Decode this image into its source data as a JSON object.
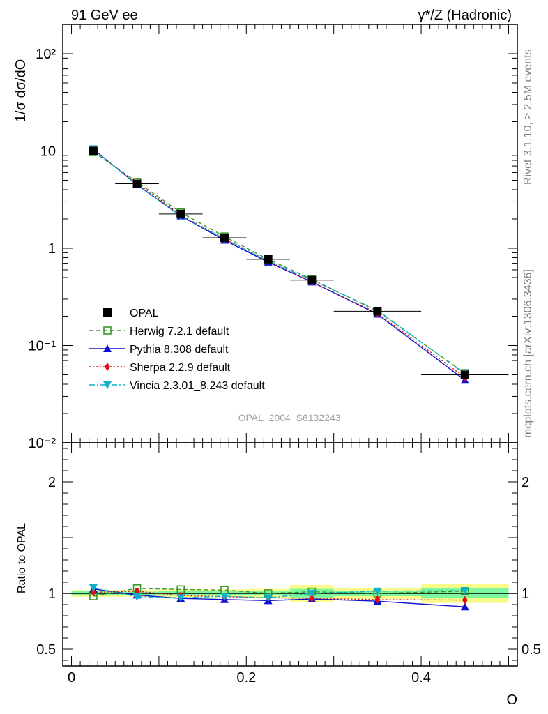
{
  "header": {
    "left": "91 GeV ee",
    "right": "γ*/Z (Hadronic)"
  },
  "side_text": {
    "rivet": "Rivet 3.1.10, ≥ 2.5M events",
    "mcplots": "mcplots.cern.ch [arXiv:1306.3436]"
  },
  "chart_data": [
    {
      "type": "line",
      "title": "",
      "ylabel": "1/σ dσ/dO",
      "ylim": [
        0.01,
        200
      ],
      "yscale": "log",
      "xlim": [
        -0.01,
        0.51
      ],
      "analysis_label": "OPAL_2004_S6132243",
      "legend_position": "middle-left",
      "y_tick_labels": [
        "10^-2",
        "10^-1",
        "1",
        "10",
        "10^2"
      ],
      "x": [
        0.025,
        0.075,
        0.125,
        0.175,
        0.225,
        0.275,
        0.35,
        0.45
      ],
      "x_bin_edges": [
        0.0,
        0.05,
        0.1,
        0.15,
        0.2,
        0.25,
        0.3,
        0.4,
        0.5
      ],
      "series": [
        {
          "name": "OPAL",
          "color": "#000000",
          "marker": "square-filled",
          "line": "none",
          "values": [
            10.0,
            4.6,
            2.25,
            1.28,
            0.77,
            0.47,
            0.225,
            0.05
          ]
        },
        {
          "name": "Herwig 7.2.1 default",
          "color": "#3a9a28",
          "marker": "square-open",
          "line": "dashed",
          "values": [
            9.75,
            4.8,
            2.33,
            1.32,
            0.77,
            0.48,
            0.225,
            0.052
          ]
        },
        {
          "name": "Pythia 8.308 default",
          "color": "#1010d0",
          "marker": "triangle-up",
          "line": "solid",
          "values": [
            10.4,
            4.5,
            2.15,
            1.21,
            0.72,
            0.45,
            0.21,
            0.044
          ]
        },
        {
          "name": "Sherpa 2.2.9 default",
          "color": "#e01010",
          "marker": "diamond",
          "line": "dotted",
          "values": [
            10.1,
            4.7,
            2.2,
            1.25,
            0.74,
            0.45,
            0.215,
            0.047
          ]
        },
        {
          "name": "Vincia 2.3.01_8.243 default",
          "color": "#10b0c8",
          "marker": "triangle-down",
          "line": "dashdot",
          "values": [
            10.5,
            4.45,
            2.15,
            1.25,
            0.74,
            0.47,
            0.23,
            0.051
          ]
        }
      ]
    },
    {
      "type": "line",
      "ylabel": "Ratio to OPAL",
      "xlabel": "O",
      "ylim": [
        0.35,
        2.35
      ],
      "xlim": [
        -0.01,
        0.51
      ],
      "y_ticks": [
        0.5,
        1,
        2
      ],
      "y_tick_labels": [
        "0.5",
        "1",
        "2"
      ],
      "x_ticks": [
        0,
        0.2,
        0.4
      ],
      "x_tick_labels": [
        "0",
        "0.2",
        "0.4"
      ],
      "x": [
        0.025,
        0.075,
        0.125,
        0.175,
        0.225,
        0.275,
        0.35,
        0.45
      ],
      "x_bin_edges": [
        0.0,
        0.05,
        0.1,
        0.15,
        0.2,
        0.25,
        0.3,
        0.4,
        0.5
      ],
      "uncertainty_bands": {
        "inner_color": "#7ef79e",
        "outer_color": "#fbfb8a",
        "inner": [
          0.02,
          0.015,
          0.02,
          0.02,
          0.02,
          0.04,
          0.025,
          0.045
        ],
        "outer": [
          0.03,
          0.03,
          0.035,
          0.035,
          0.04,
          0.075,
          0.05,
          0.085
        ]
      },
      "series": [
        {
          "name": "Herwig 7.2.1 default",
          "color": "#3a9a28",
          "values": [
            0.975,
            1.045,
            1.035,
            1.03,
            1.0,
            1.015,
            1.0,
            1.02
          ]
        },
        {
          "name": "Pythia 8.308 default",
          "color": "#1010d0",
          "values": [
            1.04,
            0.985,
            0.955,
            0.945,
            0.935,
            0.95,
            0.93,
            0.88
          ]
        },
        {
          "name": "Sherpa 2.2.9 default",
          "color": "#e01010",
          "values": [
            1.01,
            1.02,
            0.98,
            0.97,
            0.96,
            0.955,
            0.945,
            0.94
          ]
        },
        {
          "name": "Vincia 2.3.01_8.243 default",
          "color": "#10b0c8",
          "values": [
            1.05,
            0.97,
            0.96,
            0.975,
            0.96,
            1.0,
            1.02,
            1.025
          ]
        }
      ]
    }
  ]
}
